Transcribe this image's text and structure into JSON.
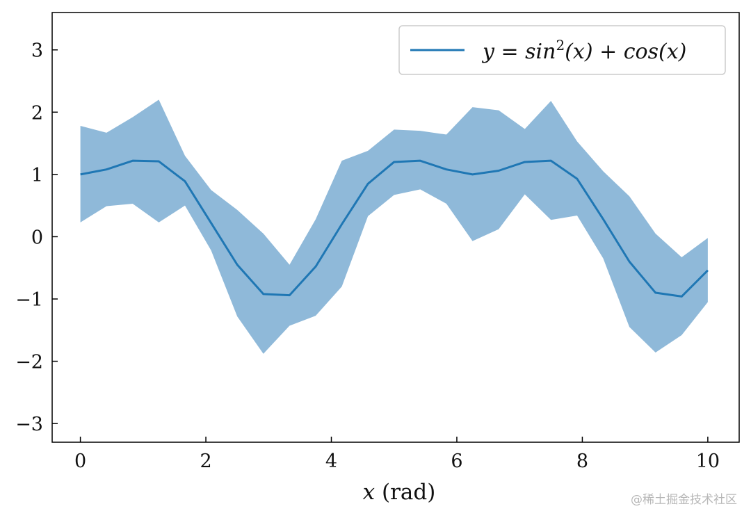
{
  "chart_data": {
    "type": "line",
    "title": "",
    "xlabel": "x (rad)",
    "ylabel": "",
    "xlim": [
      -0.45,
      10.5
    ],
    "ylim": [
      -3.3,
      3.6
    ],
    "xticks": [
      0,
      2,
      4,
      6,
      8,
      10
    ],
    "yticks": [
      -3,
      -2,
      -1,
      0,
      1,
      2,
      3
    ],
    "ytick_labels": [
      "−3",
      "−2",
      "−1",
      "0",
      "1",
      "2",
      "3"
    ],
    "grid": false,
    "legend_position": "top-right",
    "series": [
      {
        "name": "y = sin²(x) + cos(x)",
        "legend_main": "y = sin",
        "legend_sup": "2",
        "legend_rest": "(x) + cos(x)",
        "color": "#1f77b4",
        "band_color": "#8fb9d9",
        "x": [
          0,
          0.4167,
          0.8333,
          1.25,
          1.6667,
          2.0833,
          2.5,
          2.9167,
          3.3333,
          3.75,
          4.1667,
          4.5833,
          5,
          5.4167,
          5.8333,
          6.25,
          6.6667,
          7.0833,
          7.5,
          7.9167,
          8.3333,
          8.75,
          9.1667,
          9.5833,
          10
        ],
        "y": [
          1.0,
          1.08,
          1.22,
          1.21,
          0.89,
          0.22,
          -0.45,
          -0.92,
          -0.94,
          -0.48,
          0.2,
          0.85,
          1.2,
          1.22,
          1.08,
          1.0,
          1.06,
          1.2,
          1.22,
          0.93,
          0.28,
          -0.4,
          -0.9,
          -0.96,
          -0.54
        ],
        "upper": [
          1.78,
          1.67,
          1.92,
          2.2,
          1.3,
          0.75,
          0.43,
          0.05,
          -0.45,
          0.28,
          1.22,
          1.38,
          1.72,
          1.7,
          1.64,
          2.08,
          2.03,
          1.73,
          2.18,
          1.53,
          1.05,
          0.65,
          0.05,
          -0.33,
          -0.02
        ],
        "lower": [
          0.23,
          0.49,
          0.53,
          0.23,
          0.5,
          -0.22,
          -1.28,
          -1.88,
          -1.43,
          -1.27,
          -0.8,
          0.33,
          0.67,
          0.76,
          0.53,
          -0.07,
          0.12,
          0.68,
          0.27,
          0.34,
          -0.35,
          -1.45,
          -1.86,
          -1.58,
          -1.05
        ]
      }
    ]
  },
  "watermark": "@稀土掘金技术社区"
}
